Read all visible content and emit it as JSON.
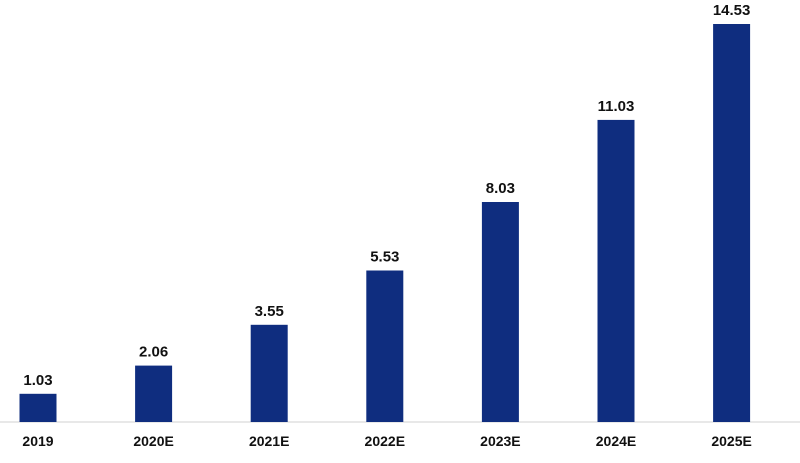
{
  "chart_data": {
    "type": "bar",
    "categories": [
      "2019",
      "2020E",
      "2021E",
      "2022E",
      "2023E",
      "2024E",
      "2025E"
    ],
    "values": [
      1.03,
      2.06,
      3.55,
      5.53,
      8.03,
      11.03,
      14.53
    ],
    "value_labels": [
      "1.03",
      "2.06",
      "3.55",
      "5.53",
      "8.03",
      "11.03",
      "14.53"
    ],
    "title": "",
    "xlabel": "",
    "ylabel": "",
    "ylim": [
      0,
      14.53
    ],
    "grid": false,
    "legend": "none",
    "bar_color": "#0f2d7f"
  }
}
